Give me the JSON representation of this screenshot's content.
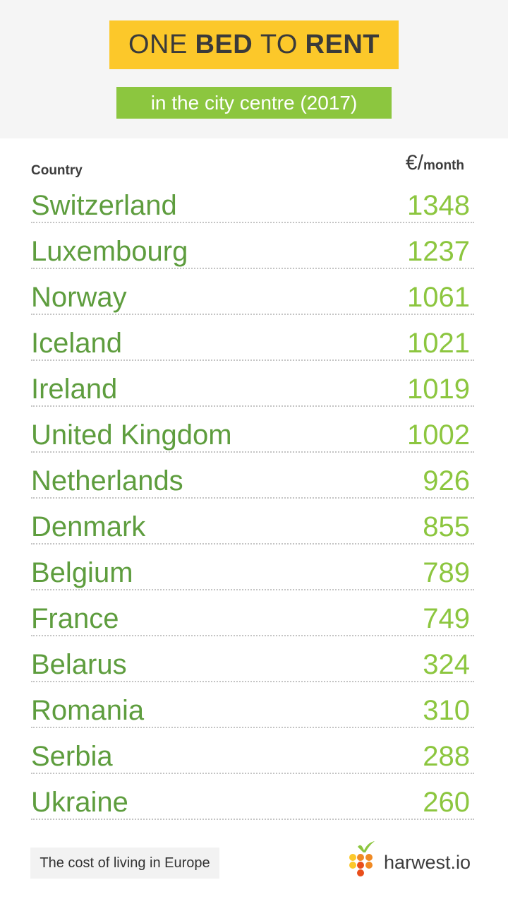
{
  "header": {
    "title_part1": "ONE",
    "title_part2": "BED",
    "title_part3": "TO",
    "title_part4": "RENT",
    "subtitle": "in the city centre (2017)"
  },
  "columns": {
    "country_label": "Country",
    "currency_symbol": "€",
    "unit_slash": "/",
    "unit_period": "month"
  },
  "colors": {
    "title_bg": "#fcc82a",
    "subtitle_bg": "#8cc63f",
    "country_text": "#5e9d3e",
    "value_text": "#8cc63f",
    "bar_start": "#8cc63f",
    "bar_mid": "#fcc82a",
    "bar_end": "#f08a24"
  },
  "chart_data": {
    "type": "bar",
    "categories": [
      "Switzerland",
      "Luxembourg",
      "Norway",
      "Iceland",
      "Ireland",
      "United Kingdom",
      "Netherlands",
      "Denmark",
      "Belgium",
      "France",
      "Belarus",
      "Romania",
      "Serbia",
      "Ukraine"
    ],
    "values": [
      1348,
      1237,
      1061,
      1021,
      1019,
      1002,
      926,
      855,
      789,
      749,
      324,
      310,
      288,
      260
    ],
    "title": "ONE BED TO RENT",
    "subtitle": "in the city centre (2017)",
    "xlabel": "Country",
    "ylabel": "€/month",
    "ylim": [
      0,
      1600
    ]
  },
  "footer": {
    "tagline": "The cost of living in Europe",
    "brand": "harwest.io",
    "logo_icon": "harwest-logo-icon"
  }
}
